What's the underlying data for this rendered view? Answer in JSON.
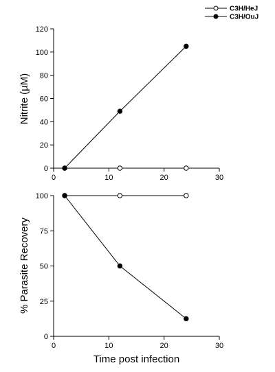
{
  "chart_data": [
    {
      "type": "line",
      "xlabel": "",
      "ylabel": "Nitrite (µM)",
      "xlim": [
        0,
        30
      ],
      "ylim": [
        0,
        120
      ],
      "xticks": [
        "0",
        "10",
        "20",
        "30"
      ],
      "yticks": [
        "0",
        "20",
        "40",
        "60",
        "80",
        "100",
        "120"
      ],
      "grid": false,
      "series": [
        {
          "name": "C3H/HeJ",
          "marker": "open-circle",
          "x": [
            2,
            12,
            24
          ],
          "y": [
            0,
            0,
            0
          ]
        },
        {
          "name": "C3H/OuJ",
          "marker": "filled-circle",
          "x": [
            2,
            12,
            24
          ],
          "y": [
            0,
            49,
            105
          ]
        }
      ]
    },
    {
      "type": "line",
      "xlabel": "Time post infection",
      "ylabel": "% Parasite Recovery",
      "xlim": [
        0,
        30
      ],
      "ylim": [
        0,
        100
      ],
      "xticks": [
        "0",
        "10",
        "20",
        "30"
      ],
      "yticks": [
        "0",
        "25",
        "50",
        "75",
        "100"
      ],
      "grid": false,
      "series": [
        {
          "name": "C3H/HeJ",
          "marker": "open-circle",
          "x": [
            2,
            12,
            24
          ],
          "y": [
            100,
            100,
            100
          ]
        },
        {
          "name": "C3H/OuJ",
          "marker": "filled-circle",
          "x": [
            2,
            12,
            24
          ],
          "y": [
            100,
            50,
            12.5
          ]
        }
      ]
    }
  ],
  "legend": {
    "placement": "top-right",
    "items": [
      {
        "label": "C3H/HeJ",
        "marker": "open-circle"
      },
      {
        "label": "C3H/OuJ",
        "marker": "filled-circle"
      }
    ]
  }
}
